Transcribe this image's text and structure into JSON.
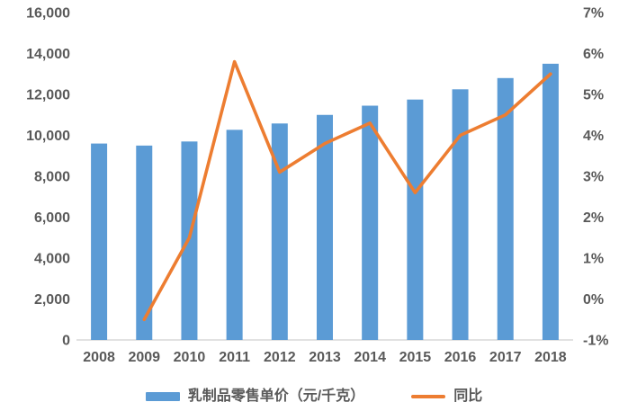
{
  "page": {
    "background": "#ffffff"
  },
  "chart_data": {
    "type": "combo",
    "title": "",
    "categories": [
      "2008",
      "2009",
      "2010",
      "2011",
      "2012",
      "2013",
      "2014",
      "2015",
      "2016",
      "2017",
      "2018"
    ],
    "series": [
      {
        "name": "乳制品零售单价（元/千克）",
        "type": "bar",
        "axis": "left",
        "color": "#5B9BD5",
        "values": [
          9600,
          9500,
          9700,
          10270,
          10580,
          11000,
          11450,
          11750,
          12250,
          12800,
          13500
        ]
      },
      {
        "name": "同比",
        "type": "line",
        "axis": "right",
        "color": "#ED7D31",
        "values": [
          null,
          -0.5,
          1.5,
          5.8,
          3.1,
          3.8,
          4.3,
          2.6,
          4.0,
          4.5,
          5.5
        ]
      }
    ],
    "axes": {
      "left": {
        "min": 0,
        "max": 16000,
        "tick_values": [
          16000,
          14000,
          12000,
          10000,
          8000,
          6000,
          4000,
          2000,
          0
        ],
        "tick_labels": [
          "16,000",
          "14,000",
          "12,000",
          "10,000",
          "8,000",
          "6,000",
          "4,000",
          "2,000",
          "0"
        ]
      },
      "right": {
        "min": -1,
        "max": 7,
        "tick_values": [
          7,
          6,
          5,
          4,
          3,
          2,
          1,
          0,
          -1
        ],
        "tick_labels": [
          "7%",
          "6%",
          "5%",
          "4%",
          "3%",
          "2%",
          "1%",
          "0%",
          "-1%"
        ]
      }
    },
    "grid": false,
    "legend_position": "bottom",
    "legend": [
      {
        "label": "乳制品零售单价（元/千克）",
        "color": "#5B9BD5",
        "type": "bar"
      },
      {
        "label": "同比",
        "color": "#ED7D31",
        "type": "line"
      }
    ]
  },
  "colors": {
    "axis_line": "#D9D9D9",
    "text": "#595959"
  }
}
